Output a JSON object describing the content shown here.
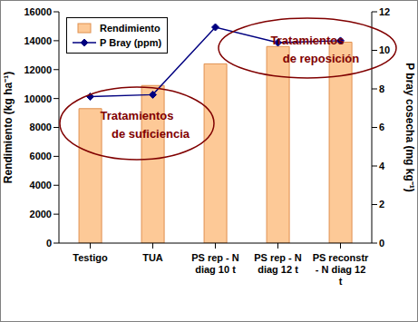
{
  "chart_data": {
    "type": "bar",
    "categories": [
      "Testigo",
      "TUA",
      "PS rep - N diag 10 t",
      "PS rep - N diag 12 t",
      "PS reconstr - N diag 12 t"
    ],
    "series": [
      {
        "name": "Rendimiento",
        "type": "bar",
        "color": "#fdc997",
        "values": [
          9300,
          10900,
          12400,
          13600,
          13900
        ]
      },
      {
        "name": "P Bray (ppm)",
        "type": "line",
        "color": "#000080",
        "marker": "diamond",
        "axis": "y2",
        "values": [
          7.6,
          7.7,
          11.2,
          10.4,
          10.5
        ]
      }
    ],
    "y_label": "Rendimiento (kg ha⁻¹)",
    "y2_label": "P bray  cosecha (mg kg⁻¹)",
    "ylim": [
      0,
      16000
    ],
    "yticks": [
      0,
      2000,
      4000,
      6000,
      8000,
      10000,
      12000,
      14000,
      16000
    ],
    "y2lim": [
      0,
      12
    ],
    "y2ticks": [
      0,
      2,
      4,
      6,
      8,
      10,
      12
    ],
    "legend": "upper left",
    "grid": false,
    "annotations": [
      "Tratamientos de suficiencia",
      "Tratamientos de reposición"
    ]
  }
}
